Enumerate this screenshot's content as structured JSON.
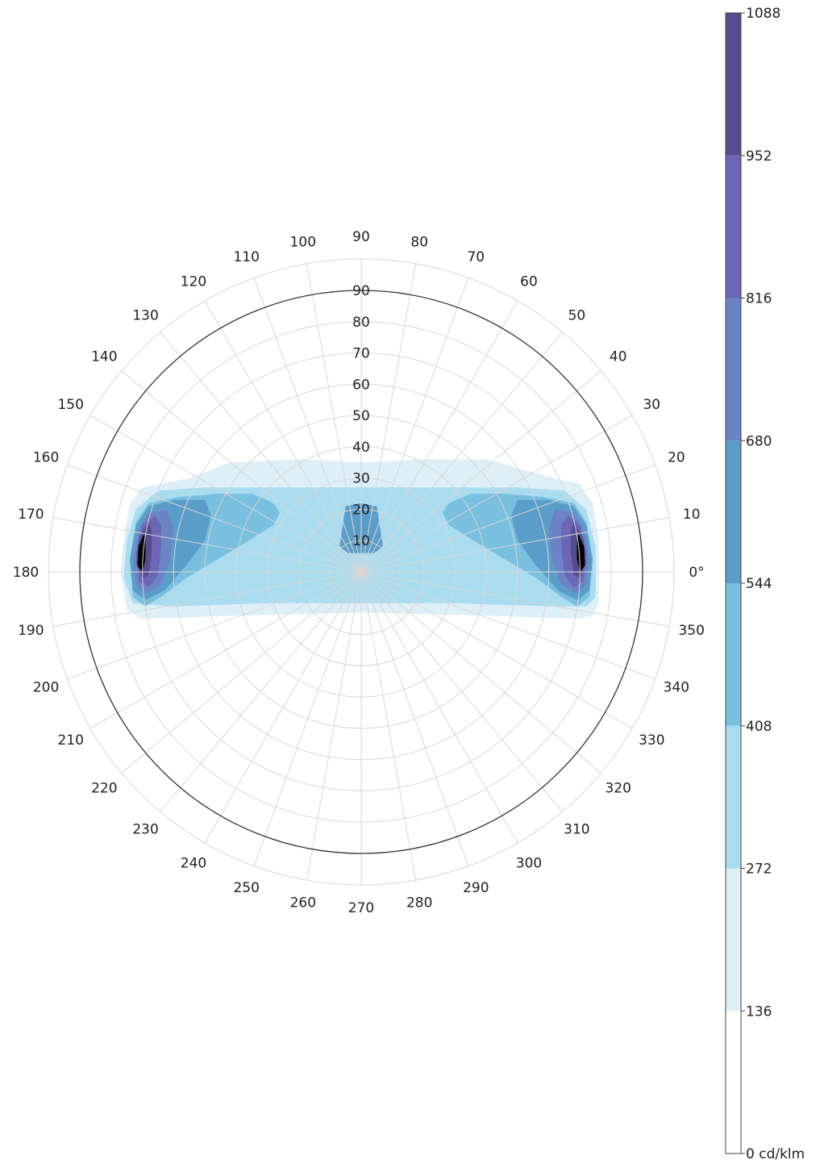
{
  "chart_data": {
    "type": "heatmap",
    "projection": "polar",
    "angular_axis": {
      "ticks": [
        0,
        10,
        20,
        30,
        40,
        50,
        60,
        70,
        80,
        90,
        100,
        110,
        120,
        130,
        140,
        150,
        160,
        170,
        180,
        190,
        200,
        210,
        220,
        230,
        240,
        250,
        260,
        270,
        280,
        290,
        300,
        310,
        320,
        330,
        340,
        350
      ],
      "tick_labels": [
        "0°",
        "10",
        "20",
        "30",
        "40",
        "50",
        "60",
        "70",
        "80",
        "90",
        "100",
        "110",
        "120",
        "130",
        "140",
        "150",
        "160",
        "170",
        "180",
        "190",
        "200",
        "210",
        "220",
        "230",
        "240",
        "250",
        "260",
        "270",
        "280",
        "290",
        "300",
        "310",
        "320",
        "330",
        "340",
        "350"
      ],
      "direction": "counterclockwise",
      "zero_at": "right"
    },
    "radial_axis": {
      "range": [
        0,
        90
      ],
      "ticks": [
        10,
        20,
        30,
        40,
        50,
        60,
        70,
        80,
        90
      ],
      "tick_labels": [
        "10",
        "20",
        "30",
        "40",
        "50",
        "60",
        "70",
        "80",
        "90"
      ]
    },
    "colorbar": {
      "position": "right",
      "unit": "cd/klm",
      "levels": [
        0,
        136,
        272,
        408,
        544,
        680,
        816,
        952,
        1088
      ],
      "level_labels": [
        "0 cd/klm",
        "136",
        "272",
        "408",
        "544",
        "680",
        "816",
        "952",
        "1088"
      ],
      "colors": [
        "#ffffff",
        "#deeff7",
        "#aadcf0",
        "#79bfe0",
        "#5b9dc9",
        "#6c84c5",
        "#6c67b5",
        "#574c8e"
      ]
    },
    "regions": [
      {
        "level_min": 136,
        "description": "outer band",
        "angles_deg": [
          0,
          180
        ],
        "radius_max_deg": 80
      },
      {
        "level_min": 272,
        "description": "central band",
        "angles_deg": [
          0,
          180
        ],
        "radius_max_deg": 78
      },
      {
        "level_min": 408,
        "description": "side lobes",
        "angles_deg": [
          0,
          180
        ],
        "radius_range_deg": [
          50,
          75
        ]
      },
      {
        "level_min": 544,
        "description": "near-nadir lobe",
        "angle_deg": 90,
        "radius_range_deg": [
          6,
          22
        ]
      },
      {
        "level_min": 952,
        "description": "peak lobes",
        "angles_deg": [
          0,
          180
        ],
        "radius_deg": 72
      },
      {
        "level_min": 1088,
        "description": "maximum",
        "angles_deg": [
          0,
          180
        ],
        "radius_deg": 73
      }
    ]
  }
}
